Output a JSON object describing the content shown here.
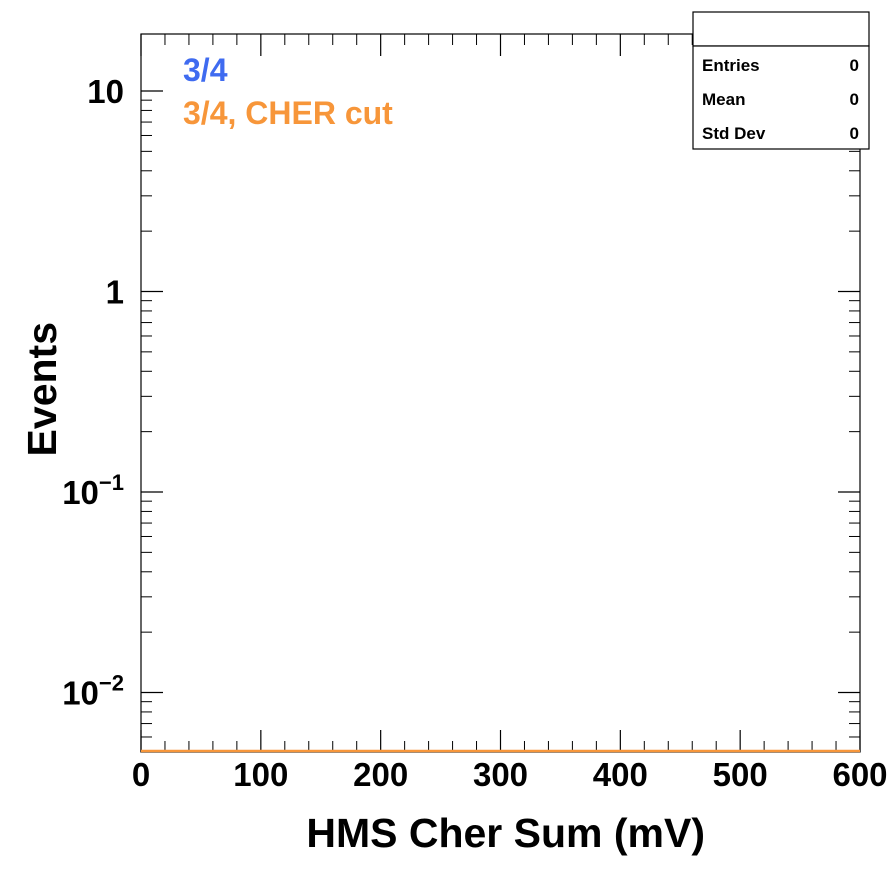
{
  "chart_data": {
    "type": "line",
    "xlabel": "HMS Cher Sum (mV)",
    "ylabel": "Events",
    "xlim": [
      0,
      600
    ],
    "ylim": [
      0.005,
      20
    ],
    "yscale": "log",
    "x_ticks": [
      0,
      100,
      200,
      300,
      400,
      500,
      600
    ],
    "x_tick_labels": [
      "0",
      "100",
      "200",
      "300",
      "400",
      "500",
      "600"
    ],
    "y_ticks": [
      {
        "value": 10,
        "base": "10",
        "exp": ""
      },
      {
        "value": 1,
        "base": "1",
        "exp": ""
      },
      {
        "value": 0.1,
        "base": "10",
        "exp": "−1"
      },
      {
        "value": 0.01,
        "base": "10",
        "exp": "−2"
      }
    ],
    "series": [
      {
        "name": "3/4",
        "color": "#3f6bf0",
        "values": []
      },
      {
        "name": "3/4, CHER cut",
        "color": "#f7963a",
        "values": []
      }
    ],
    "stats": [
      {
        "label": "Entries",
        "value": "0"
      },
      {
        "label": "Mean",
        "value": "0"
      },
      {
        "label": "Std Dev",
        "value": "0"
      }
    ],
    "legend_position": "top-left"
  }
}
